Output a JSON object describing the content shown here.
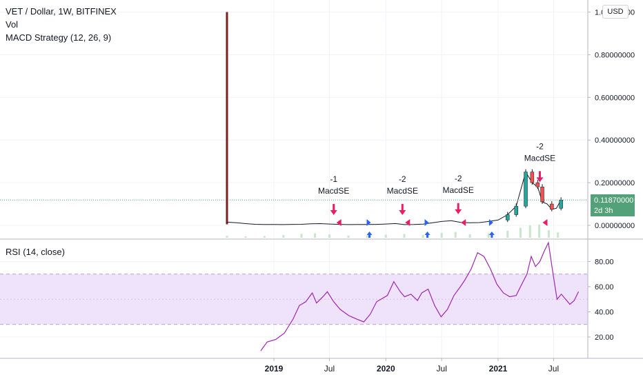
{
  "header": {
    "symbol_line": "VET / Dollar, 1W, BITFINEX",
    "volume_label": "Vol",
    "strategy_label": "MACD Strategy (12, 26, 9)",
    "currency": "USD",
    "last_price": "0.11870000",
    "countdown": "2d 3h"
  },
  "rsi_panel": {
    "label": "RSI (14, close)"
  },
  "colors": {
    "up": "#26a69a",
    "down": "#ef5350",
    "wick": "#131722",
    "spike": "#7f1d1d",
    "volume": "#c8e6c9",
    "signal_red": "#e91e63",
    "signal_blue": "#2962ff",
    "rsi_line": "#9c27b0",
    "rsi_band": "#efe2fb",
    "last_price_tag": "#53a178",
    "grid": "#f0f3fa"
  },
  "chart_data": [
    {
      "type": "candlestick",
      "x_ticks": [
        "2019",
        "Jul",
        "2020",
        "Jul",
        "2021",
        "Jul"
      ],
      "y_ticks": [
        "0.00000000",
        "0.20000000",
        "0.40000000",
        "0.60000000",
        "0.80000000",
        "1.00000000"
      ],
      "ylim": [
        0,
        1
      ],
      "last_price": 0.1187,
      "spike": {
        "date": "2018-08-01",
        "high": 1.0,
        "low": 0.005
      },
      "price_series": [
        [
          "2018-08-01",
          0.015
        ],
        [
          "2018-09-01",
          0.012
        ],
        [
          "2018-10-01",
          0.008
        ],
        [
          "2018-11-01",
          0.005
        ],
        [
          "2018-12-01",
          0.004
        ],
        [
          "2019-01-01",
          0.004
        ],
        [
          "2019-02-01",
          0.0035
        ],
        [
          "2019-03-01",
          0.0045
        ],
        [
          "2019-04-01",
          0.005
        ],
        [
          "2019-05-01",
          0.007
        ],
        [
          "2019-06-01",
          0.008
        ],
        [
          "2019-07-01",
          0.006
        ],
        [
          "2019-08-01",
          0.0045
        ],
        [
          "2019-09-01",
          0.0035
        ],
        [
          "2019-10-01",
          0.0038
        ],
        [
          "2019-11-01",
          0.004
        ],
        [
          "2019-12-01",
          0.0045
        ],
        [
          "2020-01-01",
          0.006
        ],
        [
          "2020-02-01",
          0.0085
        ],
        [
          "2020-03-01",
          0.0035
        ],
        [
          "2020-04-01",
          0.004
        ],
        [
          "2020-05-01",
          0.0055
        ],
        [
          "2020-06-01",
          0.012
        ],
        [
          "2020-07-01",
          0.018
        ],
        [
          "2020-08-01",
          0.022
        ],
        [
          "2020-09-01",
          0.014
        ],
        [
          "2020-10-01",
          0.012
        ],
        [
          "2020-11-01",
          0.013
        ],
        [
          "2020-12-01",
          0.018
        ],
        [
          "2021-01-01",
          0.025
        ],
        [
          "2021-02-01",
          0.05
        ],
        [
          "2021-03-01",
          0.09
        ],
        [
          "2021-04-01",
          0.25
        ],
        [
          "2021-04-22",
          0.2
        ],
        [
          "2021-05-10",
          0.18
        ],
        [
          "2021-05-25",
          0.11
        ],
        [
          "2021-06-10",
          0.1
        ],
        [
          "2021-06-25",
          0.075
        ],
        [
          "2021-07-10",
          0.08
        ],
        [
          "2021-07-25",
          0.1187
        ]
      ],
      "volume_series": [
        [
          "2018-08-01",
          0.9
        ],
        [
          "2018-10-01",
          0.6
        ],
        [
          "2018-12-01",
          0.8
        ],
        [
          "2019-02-01",
          1.2
        ],
        [
          "2019-04-01",
          1.8
        ],
        [
          "2019-05-15",
          2.0
        ],
        [
          "2019-07-01",
          1.5
        ],
        [
          "2019-09-01",
          1.0
        ],
        [
          "2019-11-01",
          1.1
        ],
        [
          "2020-01-01",
          1.4
        ],
        [
          "2020-03-01",
          1.7
        ],
        [
          "2020-05-01",
          1.3
        ],
        [
          "2020-07-01",
          2.2
        ],
        [
          "2020-08-15",
          2.6
        ],
        [
          "2020-10-01",
          1.6
        ],
        [
          "2020-12-01",
          2.0
        ],
        [
          "2021-02-01",
          3.2
        ],
        [
          "2021-03-15",
          4.5
        ],
        [
          "2021-04-15",
          5.6
        ],
        [
          "2021-05-15",
          6.0
        ],
        [
          "2021-06-15",
          3.5
        ],
        [
          "2021-07-15",
          2.4
        ]
      ],
      "signals": [
        {
          "date": "2019-07-15",
          "type": "sell",
          "qty": "-1",
          "label": "MacdSE",
          "price": 0.005
        },
        {
          "date": "2020-02-24",
          "type": "sell",
          "qty": "-2",
          "label": "MacdSE",
          "price": 0.008
        },
        {
          "date": "2020-08-24",
          "type": "sell",
          "qty": "-2",
          "label": "MacdSE",
          "price": 0.02
        },
        {
          "date": "2021-05-17",
          "type": "sell",
          "qty": "-2",
          "label": "MacdSE",
          "price": 0.17
        }
      ],
      "short_entries": [
        "2019-07-15",
        "2020-02-24",
        "2020-08-24",
        "2021-05-17"
      ],
      "long_entries": [
        "2019-11-04",
        "2020-05-11",
        "2020-12-07"
      ]
    },
    {
      "type": "line",
      "title": "RSI (14, close)",
      "x_ticks": [
        "2019",
        "Jul",
        "2020",
        "Jul",
        "2021",
        "Jul"
      ],
      "y_ticks": [
        "20.00",
        "40.00",
        "60.00",
        "80.00"
      ],
      "ylim": [
        0,
        100
      ],
      "band": [
        30,
        70
      ],
      "midline": 50,
      "series": [
        [
          "2018-11-19",
          9
        ],
        [
          "2018-12-10",
          16
        ],
        [
          "2019-01-07",
          18
        ],
        [
          "2019-02-04",
          23
        ],
        [
          "2019-03-04",
          34
        ],
        [
          "2019-03-25",
          45
        ],
        [
          "2019-04-15",
          48
        ],
        [
          "2019-05-06",
          55
        ],
        [
          "2019-05-20",
          47
        ],
        [
          "2019-06-10",
          52
        ],
        [
          "2019-06-24",
          56
        ],
        [
          "2019-07-15",
          48
        ],
        [
          "2019-08-05",
          42
        ],
        [
          "2019-09-02",
          37
        ],
        [
          "2019-09-30",
          34
        ],
        [
          "2019-10-21",
          32
        ],
        [
          "2019-11-11",
          38
        ],
        [
          "2019-12-02",
          48
        ],
        [
          "2020-01-06",
          53
        ],
        [
          "2020-01-27",
          64
        ],
        [
          "2020-02-17",
          56
        ],
        [
          "2020-03-02",
          52
        ],
        [
          "2020-03-23",
          54
        ],
        [
          "2020-04-13",
          49
        ],
        [
          "2020-04-27",
          55
        ],
        [
          "2020-05-18",
          58
        ],
        [
          "2020-06-08",
          45
        ],
        [
          "2020-06-29",
          36
        ],
        [
          "2020-07-20",
          42
        ],
        [
          "2020-08-10",
          53
        ],
        [
          "2020-08-31",
          60
        ],
        [
          "2020-09-14",
          65
        ],
        [
          "2020-10-05",
          74
        ],
        [
          "2020-10-26",
          87
        ],
        [
          "2020-11-16",
          84
        ],
        [
          "2020-12-07",
          74
        ],
        [
          "2020-12-28",
          62
        ],
        [
          "2021-01-18",
          55
        ],
        [
          "2021-02-08",
          52
        ],
        [
          "2021-03-01",
          53
        ],
        [
          "2021-03-15",
          60
        ],
        [
          "2021-04-05",
          70
        ],
        [
          "2021-04-19",
          84
        ],
        [
          "2021-05-03",
          76
        ],
        [
          "2021-05-17",
          80
        ],
        [
          "2021-05-31",
          88
        ],
        [
          "2021-06-14",
          95
        ],
        [
          "2021-06-28",
          72
        ],
        [
          "2021-07-12",
          50
        ],
        [
          "2021-07-26",
          54
        ],
        [
          "2021-08-09",
          50
        ],
        [
          "2021-08-23",
          46
        ],
        [
          "2021-09-06",
          49
        ],
        [
          "2021-09-20",
          56
        ]
      ]
    }
  ]
}
